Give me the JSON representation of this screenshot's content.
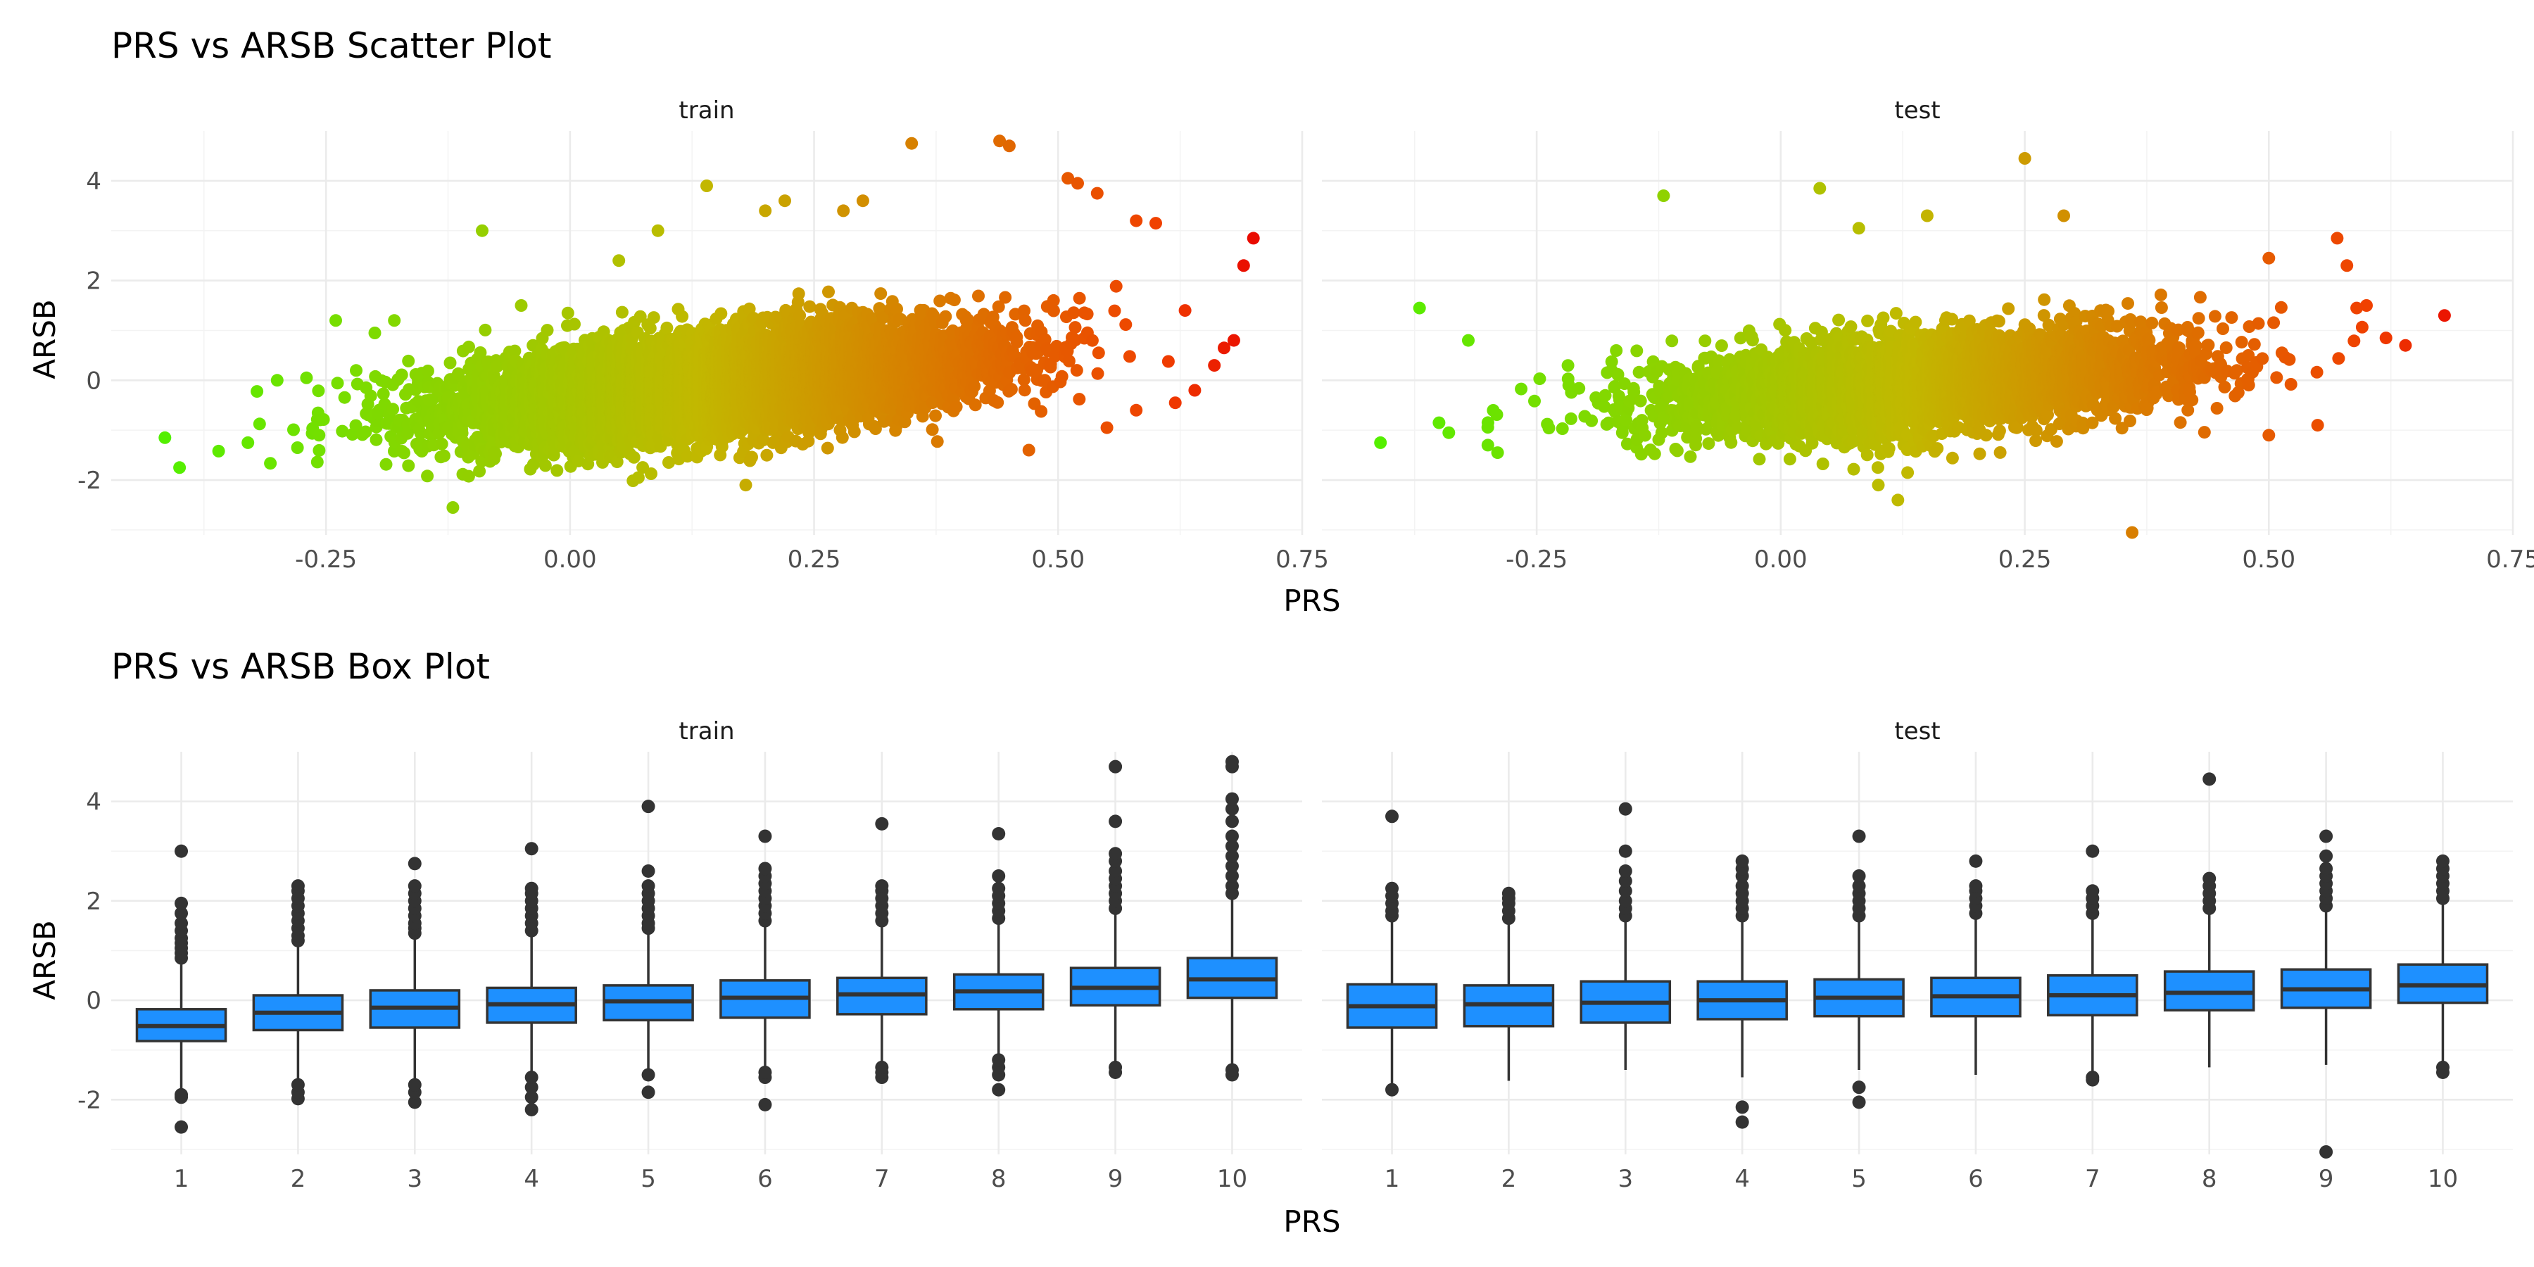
{
  "chart_data": [
    {
      "type": "scatter",
      "title": "PRS vs ARSB Scatter Plot",
      "xlabel": "PRS",
      "ylabel": "ARSB",
      "facets": [
        "train",
        "test"
      ],
      "xlim": [
        -0.47,
        0.75
      ],
      "ylim": [
        -3.1,
        5.0
      ],
      "x_ticks": [
        -0.25,
        0.0,
        0.25,
        0.5,
        0.75
      ],
      "x_tick_labels": [
        "-0.25",
        "0.00",
        "0.25",
        "0.50",
        "0.75"
      ],
      "y_ticks": [
        -2,
        0,
        2,
        4
      ],
      "y_tick_labels": [
        "-2",
        "0",
        "2",
        "4"
      ],
      "color_scale": {
        "low": "#4cf300",
        "mid": "#c2b800",
        "high": "#f04000",
        "top": "#e80000",
        "domain": [
          -0.45,
          0.72
        ]
      },
      "grid": true,
      "series": [
        {
          "facet": "train",
          "n_points": 9000,
          "trend": {
            "intercept": -0.35,
            "slope": 1.9
          },
          "points": [
            {
              "x": -0.415,
              "y": -1.15
            },
            {
              "x": -0.4,
              "y": -1.75
            },
            {
              "x": -0.36,
              "y": -1.42
            },
            {
              "x": -0.33,
              "y": -1.25
            },
            {
              "x": -0.3,
              "y": 0.0
            },
            {
              "x": -0.27,
              "y": 0.05
            },
            {
              "x": -0.24,
              "y": 1.2
            },
            {
              "x": -0.2,
              "y": 0.95
            },
            {
              "x": -0.18,
              "y": 1.2
            },
            {
              "x": -0.12,
              "y": -2.55
            },
            {
              "x": -0.09,
              "y": 3.0
            },
            {
              "x": -0.05,
              "y": 1.5
            },
            {
              "x": 0.05,
              "y": 2.4
            },
            {
              "x": 0.07,
              "y": -1.95
            },
            {
              "x": 0.09,
              "y": 3.0
            },
            {
              "x": 0.14,
              "y": 3.9
            },
            {
              "x": 0.18,
              "y": -2.1
            },
            {
              "x": 0.2,
              "y": 3.4
            },
            {
              "x": 0.22,
              "y": 3.6
            },
            {
              "x": 0.3,
              "y": 3.6
            },
            {
              "x": 0.28,
              "y": 3.4
            },
            {
              "x": 0.35,
              "y": 4.75
            },
            {
              "x": 0.44,
              "y": 4.8
            },
            {
              "x": 0.45,
              "y": 4.7
            },
            {
              "x": 0.51,
              "y": 4.05
            },
            {
              "x": 0.52,
              "y": 3.95
            },
            {
              "x": 0.54,
              "y": 3.75
            },
            {
              "x": 0.58,
              "y": 3.2
            },
            {
              "x": 0.6,
              "y": 3.15
            },
            {
              "x": 0.47,
              "y": -1.4
            },
            {
              "x": 0.55,
              "y": -0.95
            },
            {
              "x": 0.58,
              "y": -0.6
            },
            {
              "x": 0.62,
              "y": -0.45
            },
            {
              "x": 0.64,
              "y": -0.2
            },
            {
              "x": 0.66,
              "y": 0.3
            },
            {
              "x": 0.67,
              "y": 0.65
            },
            {
              "x": 0.69,
              "y": 2.3
            },
            {
              "x": 0.7,
              "y": 2.85
            },
            {
              "x": 0.68,
              "y": 0.8
            },
            {
              "x": 0.63,
              "y": 1.4
            }
          ]
        },
        {
          "facet": "test",
          "n_points": 4200,
          "trend": {
            "intercept": -0.25,
            "slope": 1.3
          },
          "points": [
            {
              "x": -0.41,
              "y": -1.25
            },
            {
              "x": -0.37,
              "y": 1.45
            },
            {
              "x": -0.35,
              "y": -0.85
            },
            {
              "x": -0.34,
              "y": -1.05
            },
            {
              "x": -0.32,
              "y": 0.8
            },
            {
              "x": -0.3,
              "y": -1.3
            },
            {
              "x": -0.29,
              "y": -1.45
            },
            {
              "x": -0.12,
              "y": 3.7
            },
            {
              "x": 0.04,
              "y": 3.85
            },
            {
              "x": 0.08,
              "y": 3.05
            },
            {
              "x": 0.15,
              "y": 3.3
            },
            {
              "x": 0.25,
              "y": 4.45
            },
            {
              "x": 0.29,
              "y": 3.3
            },
            {
              "x": 0.36,
              "y": -3.05
            },
            {
              "x": 0.1,
              "y": -2.1
            },
            {
              "x": 0.12,
              "y": -2.4
            },
            {
              "x": 0.13,
              "y": -1.85
            },
            {
              "x": 0.57,
              "y": 2.85
            },
            {
              "x": 0.58,
              "y": 2.3
            },
            {
              "x": 0.59,
              "y": 1.45
            },
            {
              "x": 0.6,
              "y": 1.5
            },
            {
              "x": 0.62,
              "y": 0.85
            },
            {
              "x": 0.64,
              "y": 0.7
            },
            {
              "x": 0.68,
              "y": 1.3
            },
            {
              "x": 0.55,
              "y": -0.9
            },
            {
              "x": 0.5,
              "y": 2.45
            },
            {
              "x": 0.5,
              "y": -1.1
            }
          ]
        }
      ]
    },
    {
      "type": "box",
      "title": "PRS vs ARSB Box Plot",
      "xlabel": "PRS",
      "ylabel": "ARSB",
      "facets": [
        "train",
        "test"
      ],
      "categories": [
        "1",
        "2",
        "3",
        "4",
        "5",
        "6",
        "7",
        "8",
        "9",
        "10"
      ],
      "ylim": [
        -3.1,
        5.0
      ],
      "y_ticks": [
        -2,
        0,
        2,
        4
      ],
      "y_tick_labels": [
        "-2",
        "0",
        "2",
        "4"
      ],
      "box_fill": "#1e90ff",
      "box_stroke": "#333333",
      "grid": true,
      "series": [
        {
          "facet": "train",
          "boxes": [
            {
              "q1": -0.82,
              "median": -0.52,
              "q3": -0.18,
              "whisker_low": -1.8,
              "whisker_high": 0.72,
              "outliers": [
                -2.55,
                -1.95,
                -1.9,
                0.85,
                0.95,
                1.05,
                1.15,
                1.25,
                1.4,
                1.55,
                1.75,
                1.95,
                3.0
              ]
            },
            {
              "q1": -0.6,
              "median": -0.25,
              "q3": 0.1,
              "whisker_low": -1.6,
              "whisker_high": 1.1,
              "outliers": [
                -1.98,
                -1.85,
                -1.7,
                1.2,
                1.3,
                1.45,
                1.6,
                1.75,
                1.9,
                2.05,
                2.2,
                2.3
              ]
            },
            {
              "q1": -0.55,
              "median": -0.15,
              "q3": 0.2,
              "whisker_low": -1.6,
              "whisker_high": 1.25,
              "outliers": [
                -2.05,
                -1.85,
                -1.7,
                1.35,
                1.45,
                1.55,
                1.7,
                1.85,
                2.0,
                2.15,
                2.3,
                2.75
              ]
            },
            {
              "q1": -0.45,
              "median": -0.08,
              "q3": 0.25,
              "whisker_low": -1.45,
              "whisker_high": 1.3,
              "outliers": [
                -2.2,
                -1.95,
                -1.75,
                -1.55,
                1.4,
                1.55,
                1.7,
                1.85,
                2.0,
                2.15,
                2.25,
                3.05
              ]
            },
            {
              "q1": -0.4,
              "median": -0.02,
              "q3": 0.3,
              "whisker_low": -1.4,
              "whisker_high": 1.35,
              "outliers": [
                -1.85,
                -1.5,
                1.45,
                1.55,
                1.7,
                1.85,
                2.0,
                2.15,
                2.3,
                2.6,
                3.9
              ]
            },
            {
              "q1": -0.35,
              "median": 0.05,
              "q3": 0.4,
              "whisker_low": -1.4,
              "whisker_high": 1.5,
              "outliers": [
                -2.1,
                -1.55,
                -1.45,
                1.6,
                1.75,
                1.9,
                2.05,
                2.2,
                2.35,
                2.5,
                2.65,
                3.3
              ]
            },
            {
              "q1": -0.28,
              "median": 0.12,
              "q3": 0.45,
              "whisker_low": -1.3,
              "whisker_high": 1.5,
              "outliers": [
                -1.55,
                -1.45,
                -1.35,
                1.6,
                1.75,
                1.9,
                2.05,
                2.2,
                2.3,
                3.55
              ]
            },
            {
              "q1": -0.18,
              "median": 0.18,
              "q3": 0.52,
              "whisker_low": -1.1,
              "whisker_high": 1.55,
              "outliers": [
                -1.8,
                -1.5,
                -1.35,
                -1.2,
                1.65,
                1.8,
                1.95,
                2.1,
                2.25,
                2.5,
                3.35
              ]
            },
            {
              "q1": -0.1,
              "median": 0.25,
              "q3": 0.65,
              "whisker_low": -1.25,
              "whisker_high": 1.75,
              "outliers": [
                -1.45,
                -1.35,
                1.85,
                2.0,
                2.15,
                2.3,
                2.45,
                2.6,
                2.8,
                2.95,
                3.6,
                4.7
              ]
            },
            {
              "q1": 0.05,
              "median": 0.42,
              "q3": 0.85,
              "whisker_low": -1.35,
              "whisker_high": 2.05,
              "outliers": [
                -1.5,
                -1.4,
                2.15,
                2.3,
                2.5,
                2.7,
                2.9,
                3.1,
                3.3,
                3.6,
                3.85,
                4.05,
                4.7,
                4.8
              ]
            }
          ]
        },
        {
          "facet": "test",
          "boxes": [
            {
              "q1": -0.55,
              "median": -0.12,
              "q3": 0.32,
              "whisker_low": -1.8,
              "whisker_high": 1.6,
              "outliers": [
                -1.8,
                1.7,
                1.8,
                1.95,
                2.1,
                2.25,
                3.7
              ]
            },
            {
              "q1": -0.52,
              "median": -0.08,
              "q3": 0.3,
              "whisker_low": -1.62,
              "whisker_high": 1.55,
              "outliers": [
                1.65,
                1.8,
                1.95,
                2.05,
                2.15
              ]
            },
            {
              "q1": -0.45,
              "median": -0.05,
              "q3": 0.38,
              "whisker_low": -1.4,
              "whisker_high": 1.6,
              "outliers": [
                1.7,
                1.85,
                2.0,
                2.2,
                2.4,
                2.6,
                3.0,
                3.85
              ]
            },
            {
              "q1": -0.38,
              "median": 0.0,
              "q3": 0.38,
              "whisker_low": -1.55,
              "whisker_high": 1.6,
              "outliers": [
                -2.45,
                -2.15,
                1.7,
                1.85,
                2.0,
                2.15,
                2.3,
                2.5,
                2.65,
                2.8
              ]
            },
            {
              "q1": -0.32,
              "median": 0.05,
              "q3": 0.42,
              "whisker_low": -1.4,
              "whisker_high": 1.6,
              "outliers": [
                -2.05,
                -1.75,
                1.7,
                1.85,
                2.0,
                2.15,
                2.3,
                2.5,
                3.3
              ]
            },
            {
              "q1": -0.32,
              "median": 0.08,
              "q3": 0.45,
              "whisker_low": -1.5,
              "whisker_high": 1.65,
              "outliers": [
                1.75,
                1.9,
                2.05,
                2.2,
                2.3,
                2.8
              ]
            },
            {
              "q1": -0.3,
              "median": 0.1,
              "q3": 0.5,
              "whisker_low": -1.5,
              "whisker_high": 1.65,
              "outliers": [
                -1.6,
                -1.55,
                1.75,
                1.9,
                2.05,
                2.2,
                3.0
              ]
            },
            {
              "q1": -0.2,
              "median": 0.15,
              "q3": 0.58,
              "whisker_low": -1.35,
              "whisker_high": 1.75,
              "outliers": [
                1.85,
                2.0,
                2.15,
                2.3,
                2.45,
                4.45
              ]
            },
            {
              "q1": -0.15,
              "median": 0.22,
              "q3": 0.62,
              "whisker_low": -1.3,
              "whisker_high": 1.8,
              "outliers": [
                -3.05,
                1.9,
                2.05,
                2.2,
                2.35,
                2.5,
                2.65,
                2.9,
                3.3
              ]
            },
            {
              "q1": -0.05,
              "median": 0.3,
              "q3": 0.72,
              "whisker_low": -1.25,
              "whisker_high": 1.95,
              "outliers": [
                -1.45,
                -1.35,
                2.05,
                2.2,
                2.35,
                2.5,
                2.65,
                2.8
              ]
            }
          ]
        }
      ]
    }
  ]
}
